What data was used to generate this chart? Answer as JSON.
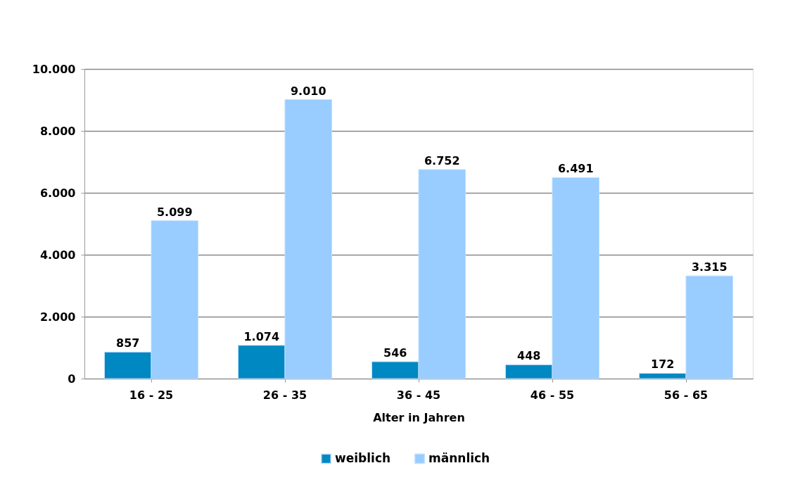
{
  "chart_data": {
    "type": "bar",
    "categories": [
      "16 - 25",
      "26 - 35",
      "36 - 45",
      "46 - 55",
      "56 - 65"
    ],
    "series": [
      {
        "name": "weiblich",
        "color": "#0088c2",
        "values": [
          857,
          1074,
          546,
          448,
          172
        ],
        "value_labels": [
          "857",
          "1.074",
          "546",
          "448",
          "172"
        ]
      },
      {
        "name": "männlich",
        "color": "#99ccff",
        "values": [
          5099,
          9010,
          6752,
          6491,
          3315
        ],
        "value_labels": [
          "5.099",
          "9.010",
          "6.752",
          "6.491",
          "3.315"
        ]
      }
    ],
    "xlabel": "Alter in Jahren",
    "ylim": [
      0,
      10000
    ],
    "yticks": [
      0,
      {
        "value": 2000,
        "label": "2.000"
      },
      {
        "value": 4000,
        "label": "4.000"
      },
      {
        "value": 6000,
        "label": "6.000"
      },
      {
        "value": 8000,
        "label": "8.000"
      },
      {
        "value": 10000,
        "label": "10.000"
      }
    ],
    "grid": "y",
    "legend": "bottom"
  }
}
